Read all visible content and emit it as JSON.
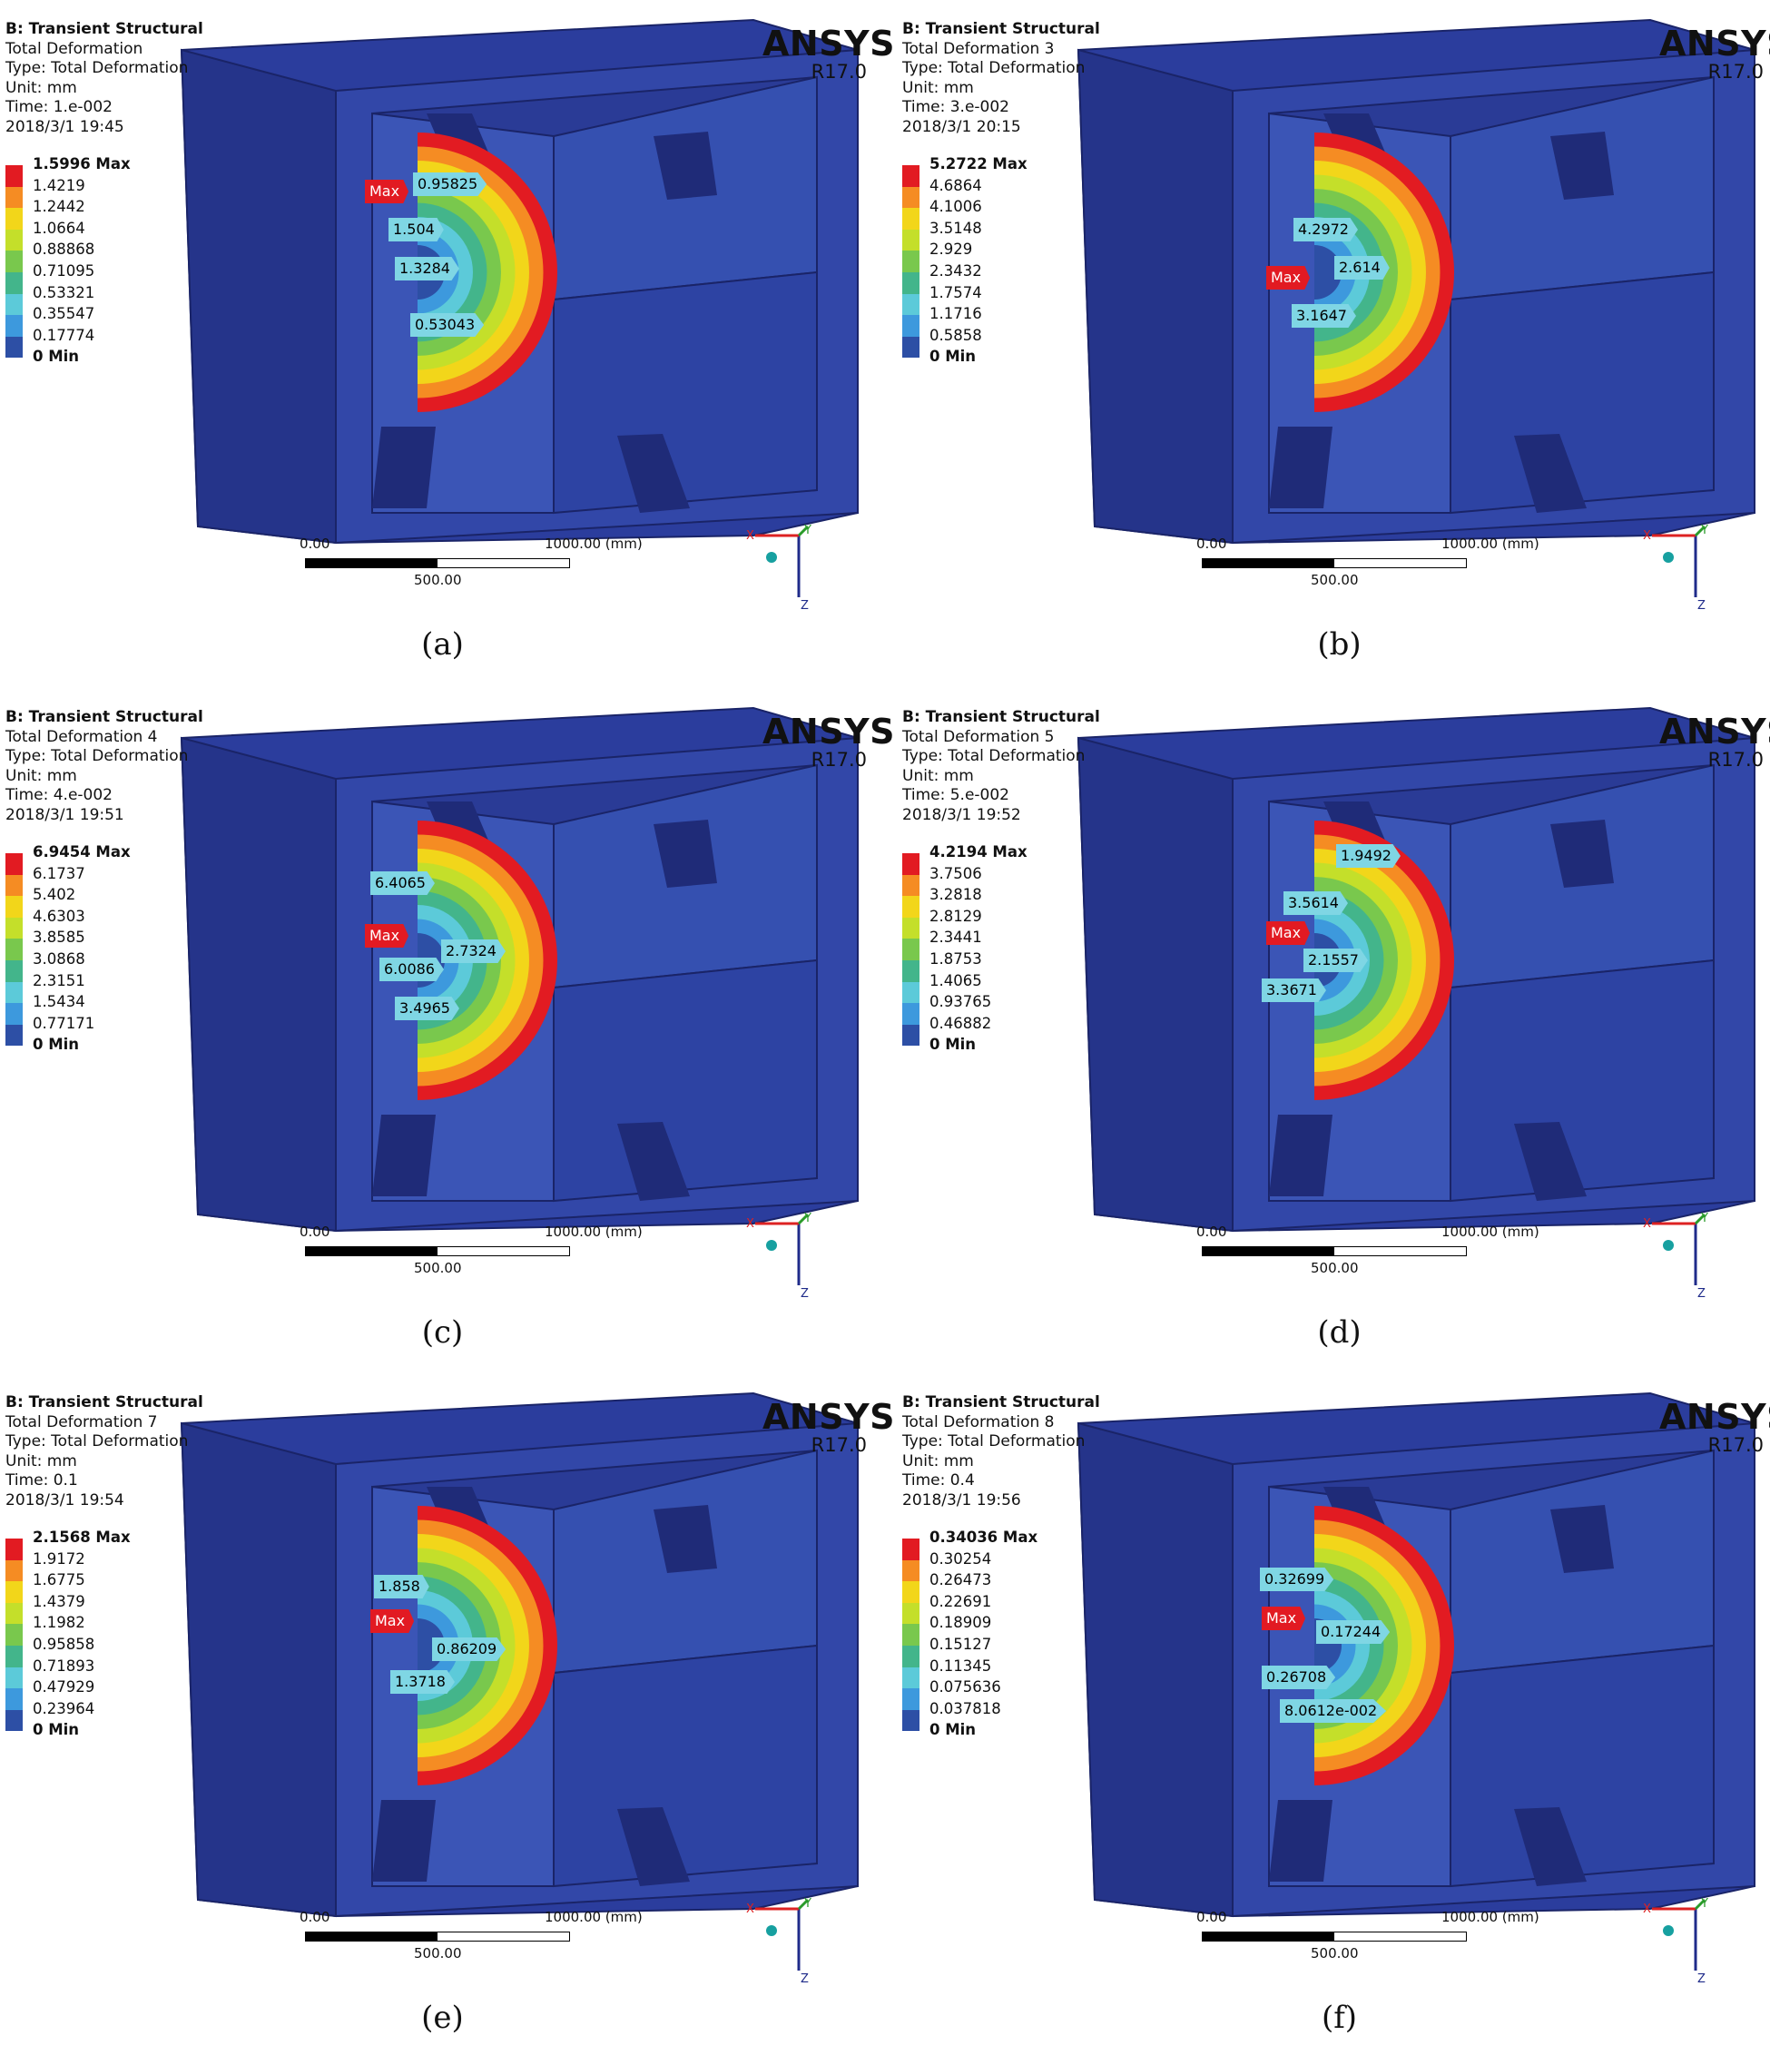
{
  "legend_colors": [
    "#e21b22",
    "#f58c23",
    "#f2d61a",
    "#c4df2a",
    "#79c84d",
    "#43b58b",
    "#5ccad9",
    "#3d99dd",
    "#2d4fa5"
  ],
  "panels": [
    {
      "id": "a",
      "caption": "(a)",
      "header": "B: Transient Structural",
      "name": "Total Deformation",
      "type": "Type: Total Deformation",
      "unit": "Unit: mm",
      "time": "Time: 1.e-002",
      "date": "2018/3/1 19:45",
      "legend": [
        "1.5996 Max",
        "1.4219",
        "1.2442",
        "1.0664",
        "0.88868",
        "0.71095",
        "0.53321",
        "0.35547",
        "0.17774",
        "0 Min"
      ],
      "probes": [
        {
          "label": "Max",
          "max": true
        },
        {
          "label": "0.95825"
        },
        {
          "label": "1.504"
        },
        {
          "label": "1.3284"
        },
        {
          "label": "0.53043"
        }
      ]
    },
    {
      "id": "b",
      "caption": "(b)",
      "header": "B: Transient Structural",
      "name": "Total Deformation 3",
      "type": "Type: Total Deformation",
      "unit": "Unit: mm",
      "time": "Time: 3.e-002",
      "date": "2018/3/1 20:15",
      "legend": [
        "5.2722 Max",
        "4.6864",
        "4.1006",
        "3.5148",
        "2.929",
        "2.3432",
        "1.7574",
        "1.1716",
        "0.5858",
        "0 Min"
      ],
      "probes": [
        {
          "label": "4.2972"
        },
        {
          "label": "2.614"
        },
        {
          "label": "Max",
          "max": true
        },
        {
          "label": "3.1647"
        }
      ]
    },
    {
      "id": "c",
      "caption": "(c)",
      "header": "B: Transient Structural",
      "name": "Total Deformation 4",
      "type": "Type: Total Deformation",
      "unit": "Unit: mm",
      "time": "Time: 4.e-002",
      "date": "2018/3/1 19:51",
      "legend": [
        "6.9454 Max",
        "6.1737",
        "5.402",
        "4.6303",
        "3.8585",
        "3.0868",
        "2.3151",
        "1.5434",
        "0.77171",
        "0 Min"
      ],
      "probes": [
        {
          "label": "6.4065"
        },
        {
          "label": "Max",
          "max": true
        },
        {
          "label": "2.7324"
        },
        {
          "label": "6.0086"
        },
        {
          "label": "3.4965"
        }
      ]
    },
    {
      "id": "d",
      "caption": "(d)",
      "header": "B: Transient Structural",
      "name": "Total Deformation 5",
      "type": "Type: Total Deformation",
      "unit": "Unit: mm",
      "time": "Time: 5.e-002",
      "date": "2018/3/1 19:52",
      "legend": [
        "4.2194 Max",
        "3.7506",
        "3.2818",
        "2.8129",
        "2.3441",
        "1.8753",
        "1.4065",
        "0.93765",
        "0.46882",
        "0 Min"
      ],
      "probes": [
        {
          "label": "1.9492"
        },
        {
          "label": "3.5614"
        },
        {
          "label": "Max",
          "max": true
        },
        {
          "label": "2.1557"
        },
        {
          "label": "3.3671"
        }
      ]
    },
    {
      "id": "e",
      "caption": "(e)",
      "header": "B: Transient Structural",
      "name": "Total Deformation 7",
      "type": "Type: Total Deformation",
      "unit": "Unit: mm",
      "time": "Time: 0.1",
      "date": "2018/3/1 19:54",
      "legend": [
        "2.1568 Max",
        "1.9172",
        "1.6775",
        "1.4379",
        "1.1982",
        "0.95858",
        "0.71893",
        "0.47929",
        "0.23964",
        "0 Min"
      ],
      "probes": [
        {
          "label": "1.858"
        },
        {
          "label": "Max",
          "max": true
        },
        {
          "label": "0.86209"
        },
        {
          "label": "1.3718"
        }
      ]
    },
    {
      "id": "f",
      "caption": "(f)",
      "header": "B: Transient Structural",
      "name": "Total Deformation 8",
      "type": "Type: Total Deformation",
      "unit": "Unit: mm",
      "time": "Time: 0.4",
      "date": "2018/3/1 19:56",
      "legend": [
        "0.34036 Max",
        "0.30254",
        "0.26473",
        "0.22691",
        "0.18909",
        "0.15127",
        "0.11345",
        "0.075636",
        "0.037818",
        "0 Min"
      ],
      "probes": [
        {
          "label": "0.32699"
        },
        {
          "label": "Max",
          "max": true
        },
        {
          "label": "0.17244"
        },
        {
          "label": "0.26708"
        },
        {
          "label": "8.0612e-002"
        }
      ]
    }
  ],
  "brand": {
    "name": "ANSYS",
    "version": "R17.0"
  },
  "scale": {
    "start": "0.00",
    "end": "1000.00 (mm)",
    "mid": "500.00"
  },
  "triad": {
    "x": "X",
    "y": "Y",
    "z": "Z"
  }
}
